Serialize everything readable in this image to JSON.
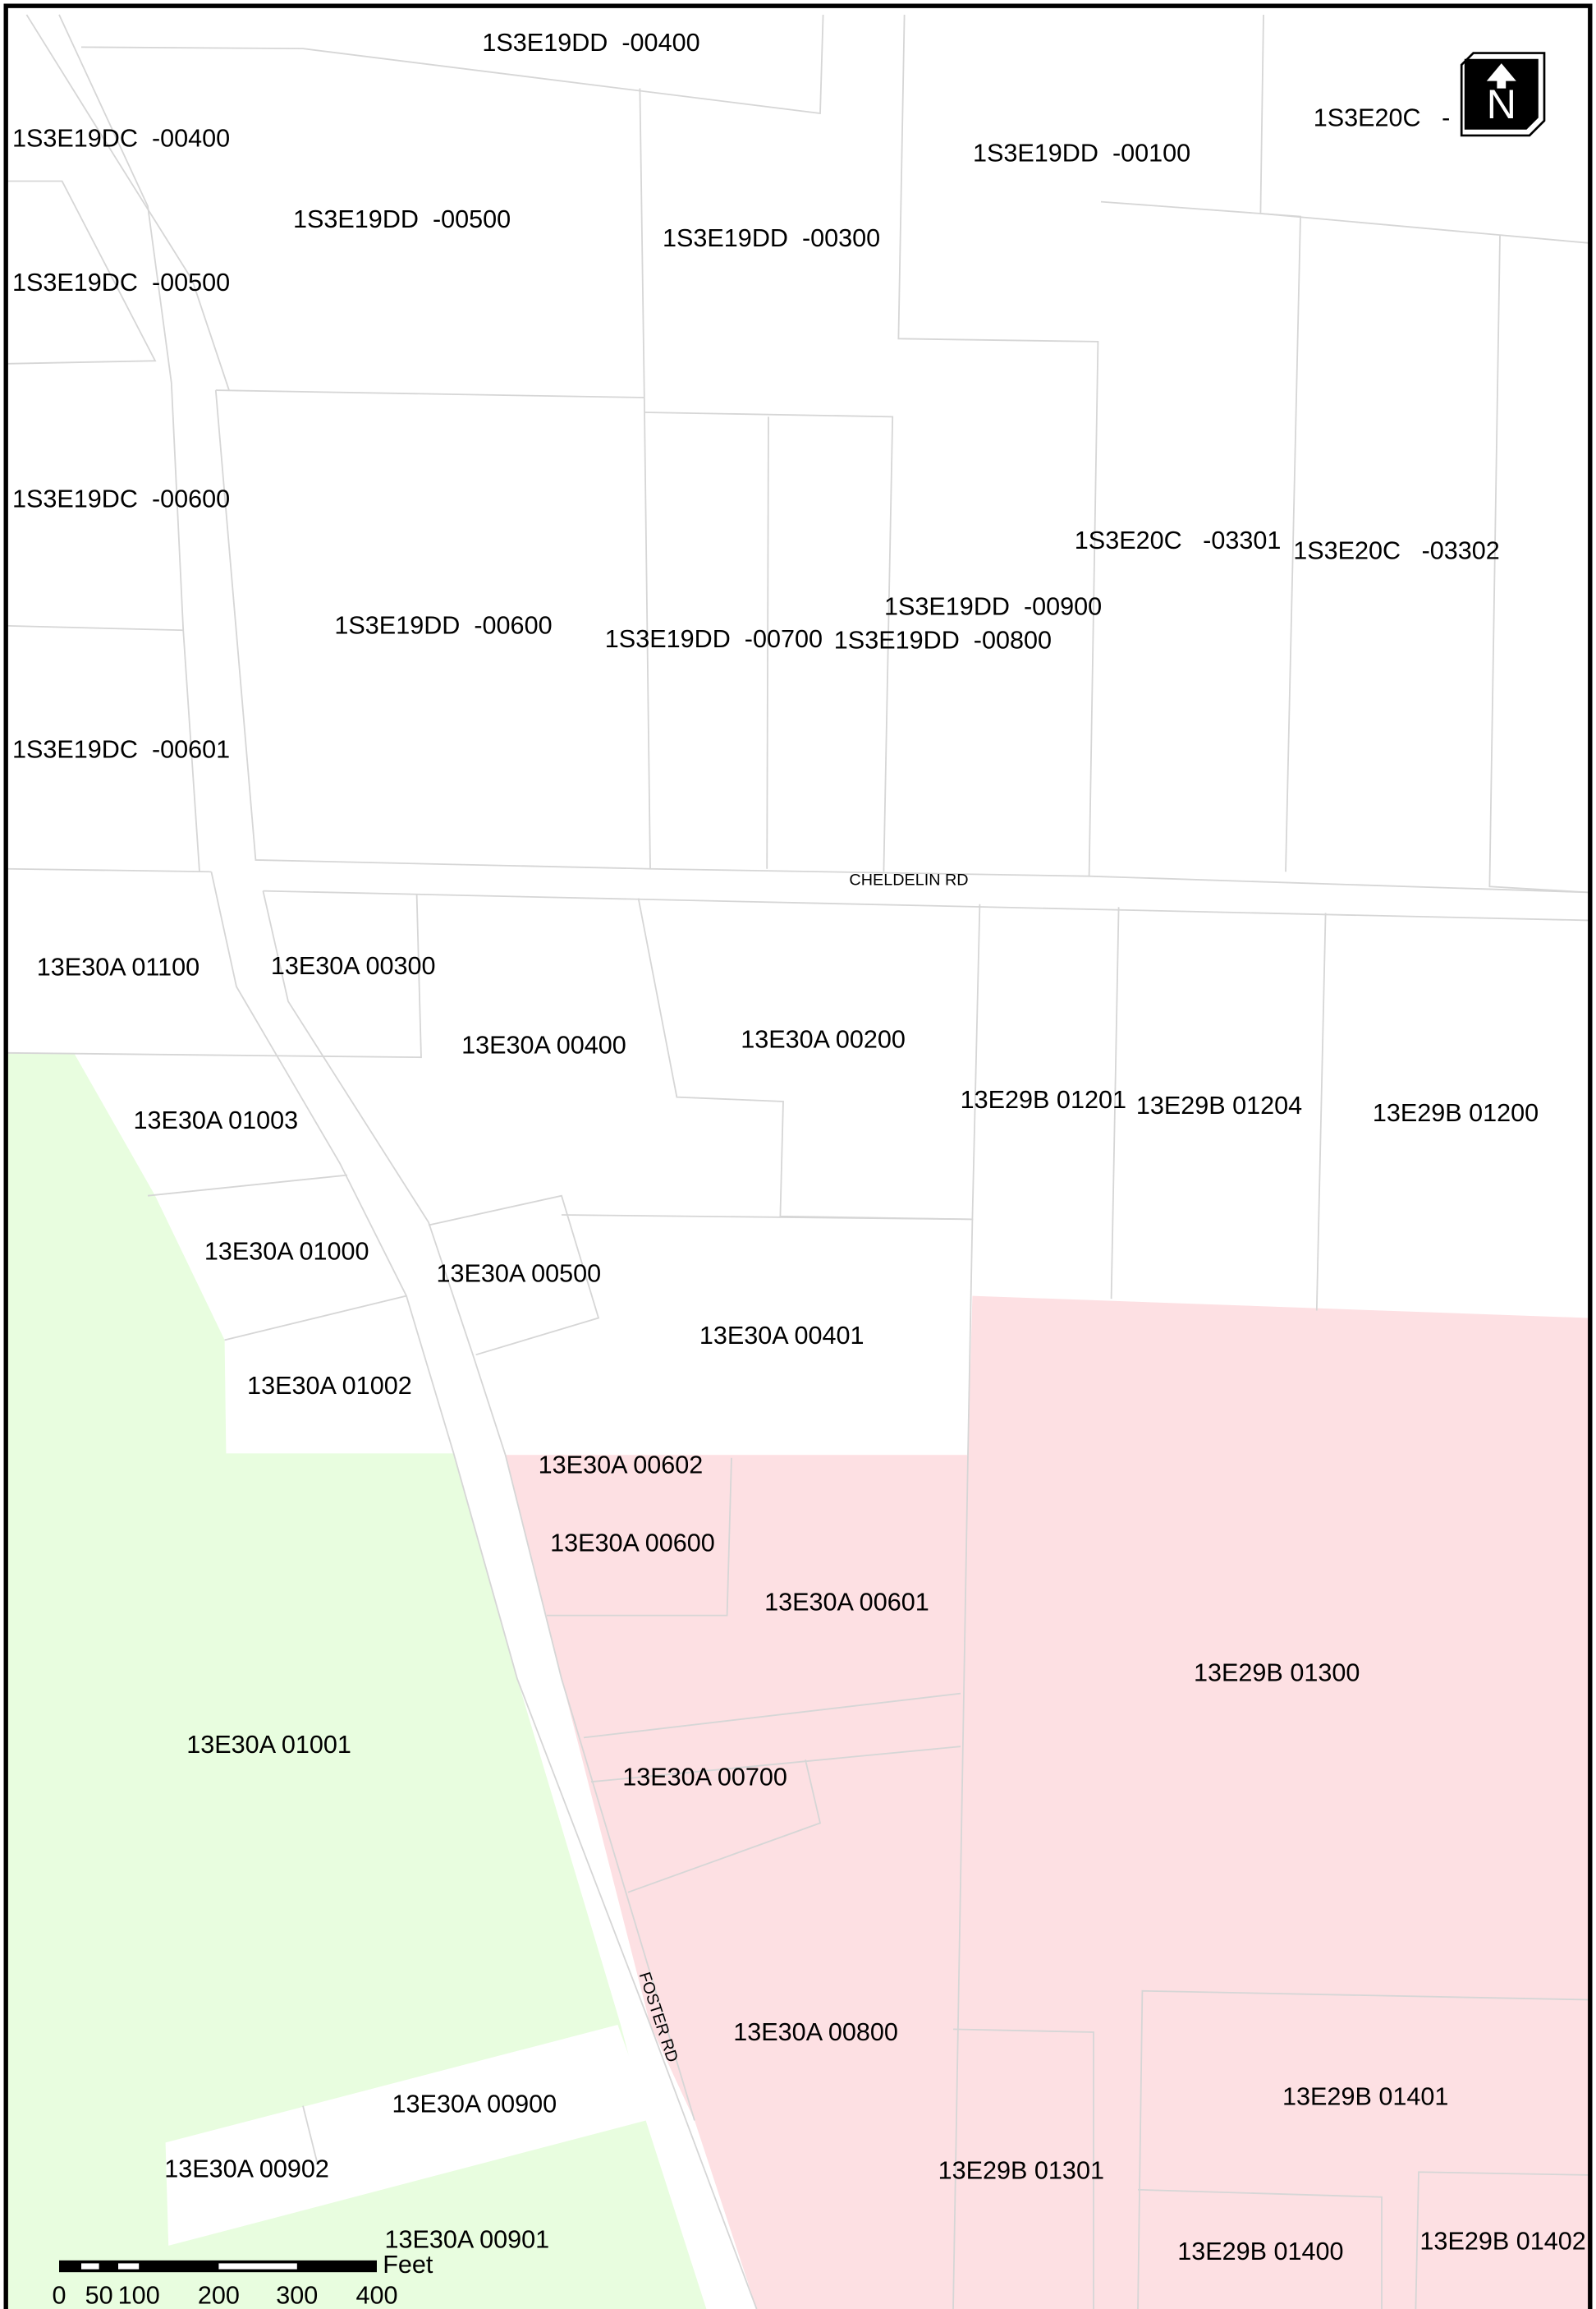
{
  "parcels": [
    "1S3E19DD  -00400",
    "1S3E19DC  -00400",
    "1S3E19DD  -00500",
    "1S3E19DD  -00300",
    "1S3E19DD  -00100",
    "1S3E20C   -",
    "1S3E19DC  -00500",
    "1S3E19DC  -00600",
    "1S3E20C   -03301",
    "1S3E20C   -03302",
    "1S3E19DD  -00900",
    "1S3E19DD  -00600",
    "1S3E19DD  -00700",
    "1S3E19DD  -00800",
    "1S3E19DC  -00601",
    "13E30A 01100",
    "13E30A 00300",
    "13E30A 00400",
    "13E30A 00200",
    "13E29B 01201",
    "13E29B 01204",
    "13E29B 01200",
    "13E30A 01003",
    "13E30A 01000",
    "13E30A 00500",
    "13E30A 00401",
    "13E30A 01002",
    "13E30A 00602",
    "13E30A 00600",
    "13E30A 00601",
    "13E29B 01300",
    "13E30A 01001",
    "13E30A 00700",
    "13E30A 00800",
    "13E29B 01401",
    "13E30A 00900",
    "13E30A 00902",
    "13E29B 01301",
    "13E30A 00901",
    "13E29B 01400",
    "13E29B 01402"
  ],
  "roads": [
    "CHELDELIN RD",
    "FOSTER RD"
  ],
  "scale_bar": {
    "labels": [
      "0",
      "50",
      "100",
      "200",
      "300",
      "400"
    ],
    "unit": "Feet"
  },
  "north_arrow": "N"
}
